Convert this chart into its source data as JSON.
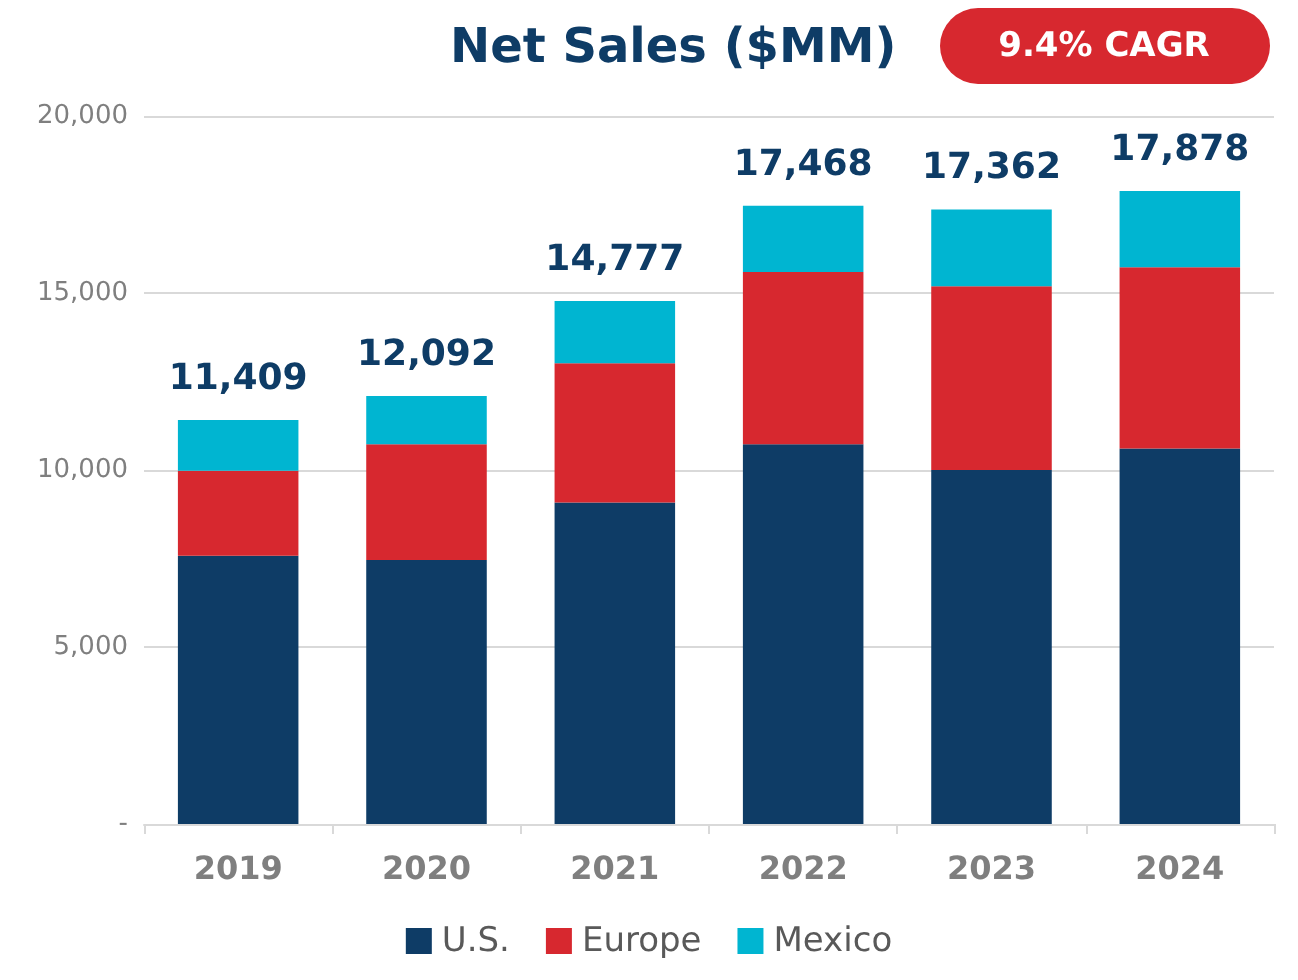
{
  "chart_data": {
    "type": "bar",
    "title": "Net Sales ($MM)",
    "annotations": [
      "9.4% CAGR"
    ],
    "categories": [
      "2019",
      "2020",
      "2021",
      "2022",
      "2023",
      "2024"
    ],
    "series": [
      {
        "name": "U.S.",
        "color": "#0e3c66",
        "values": [
          7580,
          7460,
          9080,
          10730,
          10000,
          10610
        ]
      },
      {
        "name": "Europe",
        "color": "#d7282f",
        "values": [
          2400,
          3270,
          3935,
          4860,
          5190,
          5115
        ]
      },
      {
        "name": "Mexico",
        "color": "#00b5d1",
        "values": [
          1429,
          1362,
          1762,
          1878,
          2172,
          2153
        ]
      }
    ],
    "stacked": true,
    "totals": [
      "11,409",
      "12,092",
      "14,777",
      "17,468",
      "17,362",
      "17,878"
    ],
    "ylim": [
      0,
      20000
    ],
    "yticks": [
      {
        "value": 0,
        "label": "-"
      },
      {
        "value": 5000,
        "label": "5,000"
      },
      {
        "value": 10000,
        "label": "10,000"
      },
      {
        "value": 15000,
        "label": "15,000"
      },
      {
        "value": 20000,
        "label": "20,000"
      }
    ],
    "grid": "y",
    "legend": "bottom"
  }
}
